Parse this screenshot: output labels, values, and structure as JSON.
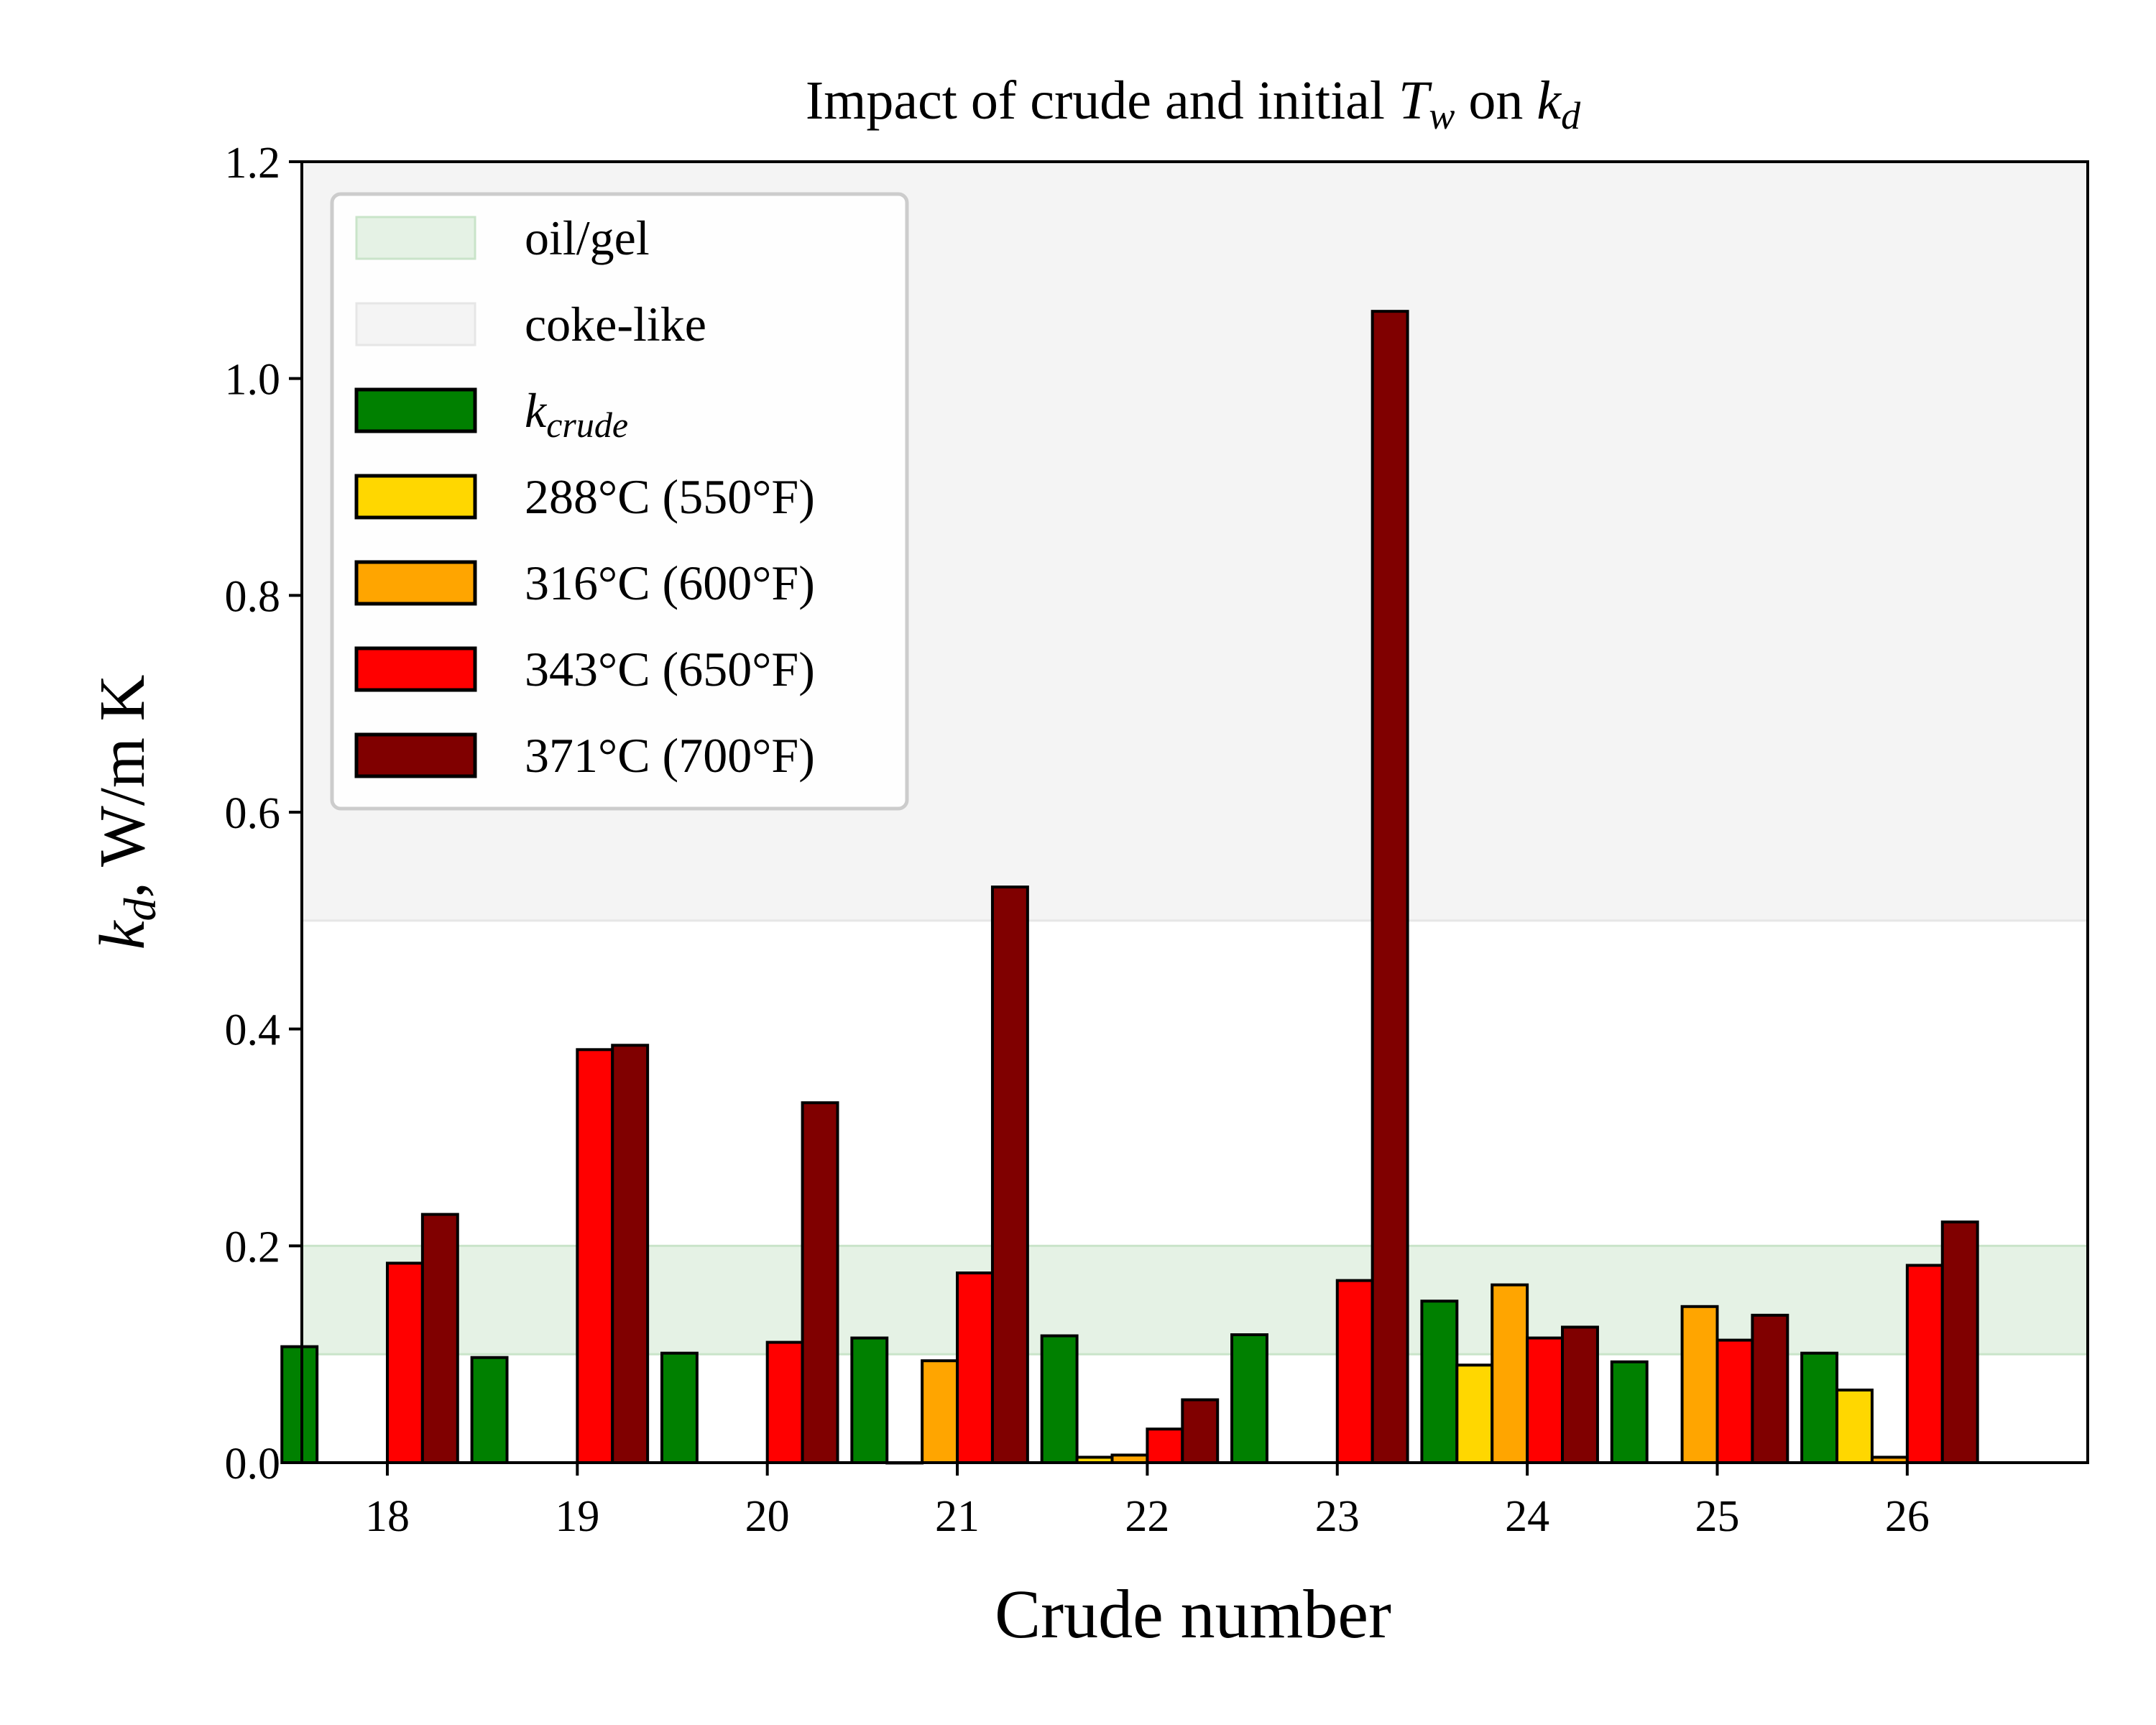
{
  "chart_data": {
    "type": "bar",
    "title": {
      "prefix": "Impact of crude and initial ",
      "var1": "T",
      "var1_sub": "w",
      "middle": " on ",
      "var2": "k",
      "var2_sub": "d"
    },
    "xlabel": "Crude number",
    "ylabel": {
      "var": "k",
      "sub": "d",
      "rest": ",  W/m K"
    },
    "categories": [
      "18",
      "19",
      "20",
      "21",
      "22",
      "23",
      "24",
      "25",
      "26"
    ],
    "ylim": [
      0,
      1.2
    ],
    "yticks": [
      "0.0",
      "0.2",
      "0.4",
      "0.6",
      "0.8",
      "1.0",
      "1.2"
    ],
    "bands": [
      {
        "name": "oil/gel",
        "from": 0.1,
        "to": 0.2,
        "color": "#e5f2e5"
      },
      {
        "name": "coke-like",
        "from": 0.5,
        "to": 1.2,
        "color": "#f4f4f4"
      }
    ],
    "series": [
      {
        "name": "k",
        "name_sub": "crude",
        "color": "#008000",
        "values": [
          0.107,
          0.097,
          0.101,
          0.115,
          0.117,
          0.118,
          0.149,
          0.093,
          0.101
        ]
      },
      {
        "name": "288°C (550°F)",
        "color": "#ffd700",
        "values": [
          null,
          null,
          null,
          0.0,
          0.005,
          null,
          0.09,
          null,
          0.067
        ]
      },
      {
        "name": "316°C (600°F)",
        "color": "#ffa500",
        "values": [
          null,
          null,
          null,
          0.094,
          0.007,
          null,
          0.164,
          0.144,
          0.005
        ]
      },
      {
        "name": "343°C (650°F)",
        "color": "#ff0000",
        "values": [
          0.184,
          0.381,
          0.111,
          0.175,
          0.031,
          0.168,
          0.115,
          0.113,
          0.182
        ]
      },
      {
        "name": "371°C (700°F)",
        "color": "#800000",
        "values": [
          0.229,
          0.385,
          0.332,
          0.531,
          0.058,
          1.062,
          0.125,
          0.136,
          0.222
        ]
      }
    ],
    "legend": "top-left"
  }
}
